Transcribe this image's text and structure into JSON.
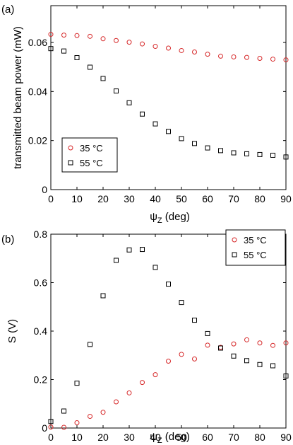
{
  "chart_data": [
    {
      "type": "scatter",
      "panel_label": "(a)",
      "xlabel": "ψZ (deg)",
      "xlabel_parts": {
        "symbol": "ψ",
        "sub": "Z",
        "rest": " (deg)"
      },
      "ylabel": "transmitted beam power (mW)",
      "xlim": [
        0,
        90
      ],
      "ylim": [
        0,
        0.075
      ],
      "xticks": [
        0,
        10,
        20,
        30,
        40,
        50,
        60,
        70,
        80,
        90
      ],
      "yticks": [
        0,
        0.02,
        0.04,
        0.06
      ],
      "ytick_labels": [
        "0",
        "0.02",
        "0.04",
        "0.06"
      ],
      "legend_position": "bottom-left",
      "series": [
        {
          "name": "35 °C",
          "marker": "circle",
          "color": "#d62728",
          "x": [
            0,
            5,
            10,
            15,
            20,
            25,
            30,
            35,
            40,
            45,
            50,
            55,
            60,
            65,
            70,
            75,
            80,
            85,
            90
          ],
          "y": [
            0.0633,
            0.063,
            0.0628,
            0.0625,
            0.0615,
            0.0608,
            0.0601,
            0.0594,
            0.0584,
            0.0577,
            0.0567,
            0.0561,
            0.0552,
            0.0544,
            0.0541,
            0.0539,
            0.0535,
            0.0532,
            0.0529
          ]
        },
        {
          "name": "55 °C",
          "marker": "square",
          "color": "#000000",
          "x": [
            0,
            5,
            10,
            15,
            20,
            25,
            30,
            35,
            40,
            45,
            50,
            55,
            60,
            65,
            70,
            75,
            80,
            85,
            90
          ],
          "y": [
            0.0575,
            0.0565,
            0.0538,
            0.0499,
            0.0453,
            0.0402,
            0.0354,
            0.0308,
            0.0268,
            0.0237,
            0.0208,
            0.0188,
            0.017,
            0.0159,
            0.015,
            0.0146,
            0.0143,
            0.014,
            0.0133
          ]
        }
      ]
    },
    {
      "type": "scatter",
      "panel_label": "(b)",
      "xlabel": "ψZ (deg)",
      "xlabel_parts": {
        "symbol": "ψ",
        "sub": "Z",
        "rest": " (deg)"
      },
      "ylabel": "S (V)",
      "xlim": [
        0,
        90
      ],
      "ylim": [
        0,
        0.8
      ],
      "xticks": [
        0,
        10,
        20,
        30,
        40,
        50,
        60,
        70,
        80,
        90
      ],
      "yticks": [
        0,
        0.2,
        0.4,
        0.6,
        0.8
      ],
      "ytick_labels": [
        "0",
        "0.2",
        "0.4",
        "0.6",
        "0.8"
      ],
      "legend_position": "top-right",
      "series": [
        {
          "name": "35 °C",
          "marker": "circle",
          "color": "#d62728",
          "x": [
            0,
            5,
            10,
            15,
            20,
            25,
            30,
            35,
            40,
            45,
            50,
            55,
            60,
            65,
            70,
            75,
            80,
            85,
            90
          ],
          "y": [
            0.004,
            0.003,
            0.022,
            0.048,
            0.065,
            0.108,
            0.145,
            0.188,
            0.22,
            0.276,
            0.304,
            0.285,
            0.342,
            0.333,
            0.347,
            0.364,
            0.351,
            0.341,
            0.351
          ]
        },
        {
          "name": "55 °C",
          "marker": "square",
          "color": "#000000",
          "x": [
            0,
            5,
            10,
            15,
            20,
            25,
            30,
            35,
            40,
            45,
            50,
            55,
            60,
            65,
            70,
            75,
            80,
            85,
            90
          ],
          "y": [
            0.027,
            0.07,
            0.185,
            0.345,
            0.546,
            0.692,
            0.735,
            0.737,
            0.663,
            0.594,
            0.518,
            0.445,
            0.39,
            0.33,
            0.297,
            0.278,
            0.262,
            0.257,
            0.215
          ]
        }
      ]
    }
  ]
}
